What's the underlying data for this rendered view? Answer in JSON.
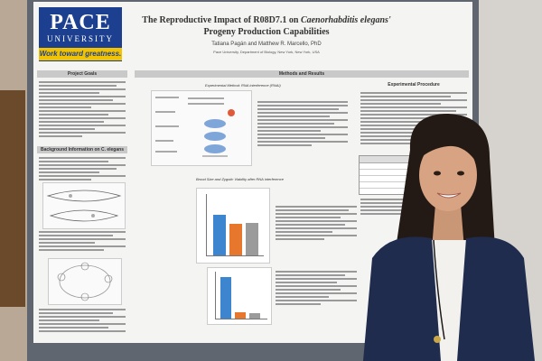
{
  "poster": {
    "logo": {
      "line1": "PACE",
      "line2": "UNIVERSITY",
      "tagline": "Work toward greatness."
    },
    "title_prefix": "The Reproductive Impact of R08D7.1 on ",
    "title_species": "Caenorhabditis elegans'",
    "title_suffix": " Progeny Production Capabilities",
    "authors": "Tatiana Pagán and Matthew R. Marcello, PhD",
    "affiliation": "Pace University, Department of Biology, New York, New York, USA",
    "sections": {
      "project_goals": "Project Goals",
      "methods_results": "Methods and Results",
      "background": "Background Information on C. elegans",
      "experimental_procedure": "Experimental Procedure"
    },
    "subheads": {
      "experimental_method": "Experimental Method: RNA interference (RNAi)",
      "brood_size": "Brood Size and Zygotic Viability after RNA interference"
    }
  },
  "colors": {
    "poster_bg": "#f4f4f2",
    "logo_blue": "#1d3f8f",
    "logo_gold": "#f2c300",
    "bar_blue": "#3d86cf",
    "bar_orange": "#e8772e",
    "bar_gray": "#9b9b9b",
    "blazer_navy": "#1f2c4d"
  },
  "chart_values": {
    "brood_size_chart": [
      0.66,
      0.51,
      0.53
    ],
    "viability_chart": [
      0.88,
      0.14,
      0.11
    ]
  }
}
